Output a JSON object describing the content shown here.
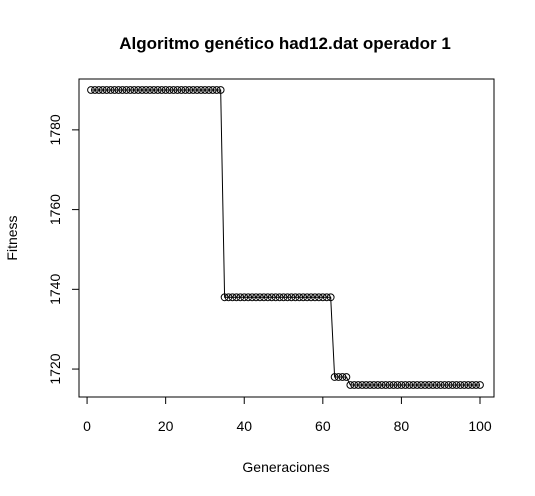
{
  "chart_data": {
    "type": "line",
    "title": "Algoritmo genético had12.dat operador 1",
    "xlabel": "Generaciones",
    "ylabel": "Fitness",
    "xlim": [
      1,
      100
    ],
    "ylim": [
      1713,
      1793
    ],
    "xticks": [
      0,
      20,
      40,
      60,
      80,
      100
    ],
    "yticks": [
      1720,
      1740,
      1760,
      1780
    ],
    "series": [
      {
        "x": [
          1,
          2,
          3,
          4,
          5,
          6,
          7,
          8,
          9,
          10,
          11,
          12,
          13,
          14,
          15,
          16,
          17,
          18,
          19,
          20,
          21,
          22,
          23,
          24,
          25,
          26,
          27,
          28,
          29,
          30,
          31,
          32,
          33,
          34,
          35,
          36,
          37,
          38,
          39,
          40,
          41,
          42,
          43,
          44,
          45,
          46,
          47,
          48,
          49,
          50,
          51,
          52,
          53,
          54,
          55,
          56,
          57,
          58,
          59,
          60,
          61,
          62,
          63,
          64,
          65,
          66,
          67,
          68,
          69,
          70,
          71,
          72,
          73,
          74,
          75,
          76,
          77,
          78,
          79,
          80,
          81,
          82,
          83,
          84,
          85,
          86,
          87,
          88,
          89,
          90,
          91,
          92,
          93,
          94,
          95,
          96,
          97,
          98,
          99,
          100
        ],
        "y": [
          1790,
          1790,
          1790,
          1790,
          1790,
          1790,
          1790,
          1790,
          1790,
          1790,
          1790,
          1790,
          1790,
          1790,
          1790,
          1790,
          1790,
          1790,
          1790,
          1790,
          1790,
          1790,
          1790,
          1790,
          1790,
          1790,
          1790,
          1790,
          1790,
          1790,
          1790,
          1790,
          1790,
          1790,
          1738,
          1738,
          1738,
          1738,
          1738,
          1738,
          1738,
          1738,
          1738,
          1738,
          1738,
          1738,
          1738,
          1738,
          1738,
          1738,
          1738,
          1738,
          1738,
          1738,
          1738,
          1738,
          1738,
          1738,
          1738,
          1738,
          1738,
          1738,
          1718,
          1718,
          1718,
          1718,
          1716,
          1716,
          1716,
          1716,
          1716,
          1716,
          1716,
          1716,
          1716,
          1716,
          1716,
          1716,
          1716,
          1716,
          1716,
          1716,
          1716,
          1716,
          1716,
          1716,
          1716,
          1716,
          1716,
          1716,
          1716,
          1716,
          1716,
          1716,
          1716,
          1716,
          1716,
          1716,
          1716,
          1716
        ]
      }
    ],
    "line_color": "#000000",
    "marker": "open-circle",
    "grid": false
  }
}
